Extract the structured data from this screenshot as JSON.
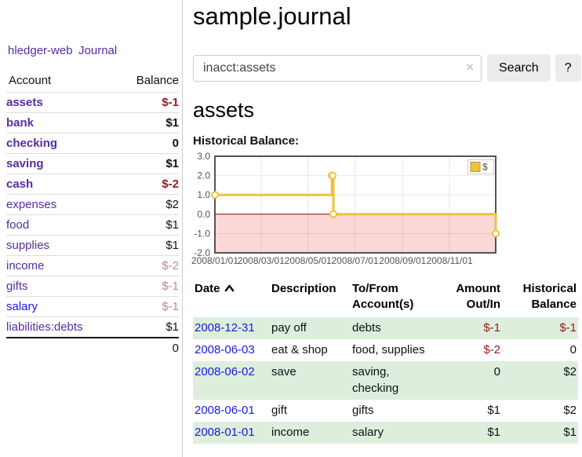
{
  "app": {
    "brand": "hledger-web",
    "nav_journal": "Journal"
  },
  "colors": {
    "purple_link": "#552da0",
    "blue_link": "#1a1ae0",
    "negative": "#971919",
    "negative_muted": "#c68585",
    "row_stripe": "#ddeedd",
    "chart_line": "#edc240",
    "chart_negative_fill": "#fbd7d7",
    "zero_line": "#8b0000",
    "chart_border": "#545454"
  },
  "sidebar": {
    "table_headers": {
      "account": "Account",
      "balance": "Balance"
    },
    "accounts": [
      {
        "name": "assets",
        "balance": "$-1",
        "depth": 1,
        "bold": true,
        "balance_style": "negative"
      },
      {
        "name": "bank",
        "balance": "$1",
        "depth": 2,
        "bold": true,
        "balance_style": "normal"
      },
      {
        "name": "checking",
        "balance": "0",
        "depth": 3,
        "bold": true,
        "balance_style": "normal"
      },
      {
        "name": "saving",
        "balance": "$1",
        "depth": 3,
        "bold": true,
        "balance_style": "normal"
      },
      {
        "name": "cash",
        "balance": "$-2",
        "depth": 2,
        "bold": true,
        "balance_style": "negative"
      },
      {
        "name": "expenses",
        "balance": "$2",
        "depth": 1,
        "bold": false,
        "balance_style": "normal"
      },
      {
        "name": "food",
        "balance": "$1",
        "depth": 2,
        "bold": false,
        "balance_style": "normal"
      },
      {
        "name": "supplies",
        "balance": "$1",
        "depth": 2,
        "bold": false,
        "balance_style": "normal"
      },
      {
        "name": "income",
        "balance": "$-2",
        "depth": 1,
        "bold": false,
        "balance_style": "negative-muted"
      },
      {
        "name": "gifts",
        "balance": "$-1",
        "depth": 2,
        "bold": false,
        "balance_style": "negative-muted"
      },
      {
        "name": "salary",
        "balance": "$-1",
        "depth": 2,
        "bold": false,
        "balance_style": "negative-muted",
        "link_style": "blue"
      },
      {
        "name": "liabilities:debts",
        "balance": "$1",
        "depth": 1,
        "bold": false,
        "balance_style": "normal"
      }
    ],
    "total": "0"
  },
  "header": {
    "title": "sample.journal"
  },
  "search": {
    "value": "inacct:assets",
    "clear_icon": "×",
    "button_label": "Search",
    "help_label": "?"
  },
  "account_page": {
    "heading": "assets",
    "chart_label": "Historical Balance:"
  },
  "chart_data": {
    "type": "line",
    "title": "Historical Balance",
    "step": true,
    "series": [
      {
        "name": "$",
        "color": "#edc240",
        "points": [
          {
            "date": "2008-01-01",
            "day": 0,
            "value": 1
          },
          {
            "date": "2008-06-01",
            "day": 152,
            "value": 2
          },
          {
            "date": "2008-06-02",
            "day": 153,
            "value": 2
          },
          {
            "date": "2008-06-03",
            "day": 154,
            "value": 0
          },
          {
            "date": "2008-12-31",
            "day": 365,
            "value": -1
          }
        ]
      }
    ],
    "x_ticks": [
      {
        "label": "2008/01/01",
        "day": 0
      },
      {
        "label": "2008/03/01",
        "day": 60
      },
      {
        "label": "2008/05/01",
        "day": 121
      },
      {
        "label": "2008/07/01",
        "day": 182
      },
      {
        "label": "2008/09/01",
        "day": 244
      },
      {
        "label": "2008/11/01",
        "day": 305
      }
    ],
    "y_ticks": [
      3.0,
      2.0,
      1.0,
      0.0,
      -1.0,
      -2.0
    ],
    "ylim": [
      -2,
      3
    ],
    "xlim_days": [
      0,
      365
    ],
    "legend": {
      "label": "$",
      "position": "top-right"
    },
    "grid": true,
    "negative_region_color": "#fbd7d7",
    "zero_line_color": "#8b0000"
  },
  "register_table": {
    "columns": [
      "Date",
      "Description",
      "To/From Account(s)",
      "Amount Out/In",
      "Historical Balance"
    ],
    "sort": {
      "column": "Date",
      "direction": "ascending"
    },
    "rows": [
      {
        "date": "2008-12-31",
        "description": "pay off",
        "accounts": "debts",
        "amount": "$-1",
        "balance": "$-1",
        "amount_style": "negative",
        "balance_style": "negative"
      },
      {
        "date": "2008-06-03",
        "description": "eat & shop",
        "accounts": "food, supplies",
        "amount": "$-2",
        "balance": "0",
        "amount_style": "negative",
        "balance_style": "normal"
      },
      {
        "date": "2008-06-02",
        "description": "save",
        "accounts": "saving, checking",
        "amount": "0",
        "balance": "$2",
        "amount_style": "normal",
        "balance_style": "normal"
      },
      {
        "date": "2008-06-01",
        "description": "gift",
        "accounts": "gifts",
        "amount": "$1",
        "balance": "$2",
        "amount_style": "normal",
        "balance_style": "normal"
      },
      {
        "date": "2008-01-01",
        "description": "income",
        "accounts": "salary",
        "amount": "$1",
        "balance": "$1",
        "amount_style": "normal",
        "balance_style": "normal"
      }
    ]
  }
}
